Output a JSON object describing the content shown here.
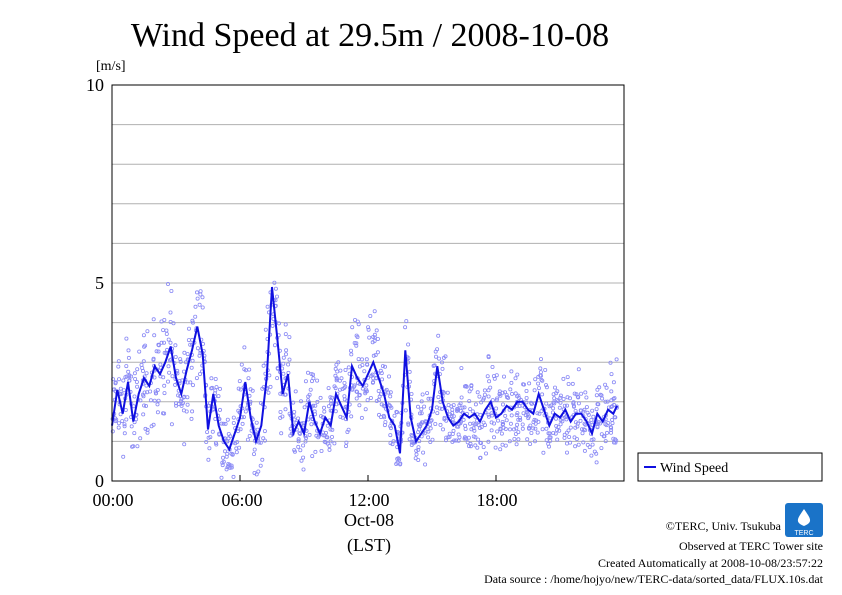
{
  "chart_data": {
    "type": "scatter",
    "title": "Wind Speed at 29.5m / 2008-10-08",
    "ylabel_unit": "[m/s]",
    "xlabel": "(LST)",
    "x_date_label": "Oct-08",
    "ylim": [
      0,
      10
    ],
    "xlim_hours": [
      0,
      23.67
    ],
    "y_ticks": [
      "0",
      "5",
      "10"
    ],
    "x_ticks": [
      "00:00",
      "06:00",
      "12:00",
      "18:00"
    ],
    "grid": "horizontal",
    "legend": {
      "label": "Wind Speed",
      "placement": "right"
    },
    "colors": {
      "line": "#1010e0",
      "points": "#8a8af5"
    },
    "series": [
      {
        "name": "Wind Speed",
        "x_hours": [
          0.0,
          0.25,
          0.5,
          0.75,
          1.0,
          1.25,
          1.5,
          1.75,
          2.0,
          2.25,
          2.5,
          2.75,
          3.0,
          3.25,
          3.5,
          3.75,
          4.0,
          4.25,
          4.5,
          4.75,
          5.0,
          5.25,
          5.5,
          5.75,
          6.0,
          6.25,
          6.5,
          6.75,
          7.0,
          7.25,
          7.5,
          7.75,
          8.0,
          8.25,
          8.5,
          8.75,
          9.0,
          9.25,
          9.5,
          9.75,
          10.0,
          10.25,
          10.5,
          10.75,
          11.0,
          11.25,
          11.5,
          11.75,
          12.0,
          12.25,
          12.5,
          12.75,
          13.0,
          13.25,
          13.5,
          13.75,
          14.0,
          14.25,
          14.5,
          14.75,
          15.0,
          15.25,
          15.5,
          15.75,
          16.0,
          16.25,
          16.5,
          16.75,
          17.0,
          17.25,
          17.5,
          17.75,
          18.0,
          18.25,
          18.5,
          18.75,
          19.0,
          19.25,
          19.5,
          19.75,
          20.0,
          20.25,
          20.5,
          20.75,
          21.0,
          21.25,
          21.5,
          21.75,
          22.0,
          22.25,
          22.5,
          22.75,
          23.0,
          23.25,
          23.5,
          23.67
        ],
        "values": [
          1.4,
          2.3,
          1.7,
          2.5,
          1.5,
          2.2,
          2.6,
          2.4,
          2.9,
          2.7,
          3.0,
          3.4,
          2.6,
          2.2,
          2.8,
          3.3,
          3.9,
          3.2,
          1.3,
          2.2,
          1.4,
          1.0,
          0.8,
          1.2,
          1.6,
          2.5,
          1.6,
          1.0,
          1.4,
          2.6,
          4.9,
          3.6,
          2.2,
          2.7,
          1.2,
          1.5,
          1.2,
          2.0,
          1.5,
          1.2,
          1.6,
          1.4,
          2.2,
          1.9,
          1.6,
          2.9,
          2.6,
          2.4,
          2.7,
          3.0,
          2.6,
          2.2,
          1.6,
          1.4,
          0.7,
          3.3,
          1.6,
          1.0,
          1.2,
          1.4,
          1.8,
          2.9,
          2.0,
          1.6,
          1.4,
          1.5,
          1.7,
          1.6,
          1.7,
          1.5,
          1.8,
          2.0,
          1.6,
          1.7,
          1.9,
          1.8,
          2.0,
          2.0,
          1.8,
          1.7,
          2.2,
          1.8,
          1.4,
          1.7,
          1.6,
          1.8,
          1.5,
          1.7,
          1.7,
          1.5,
          1.2,
          1.7,
          1.5,
          1.8,
          1.7,
          1.9
        ]
      }
    ]
  },
  "credits": {
    "copyright": "©TERC, Univ. Tsukuba",
    "observed": "Observed at TERC Tower site",
    "created": "Created Automatically at 2008-10-08/23:57:22",
    "source": "Data source : /home/hojyo/new/TERC-data/sorted_data/FLUX.10s.dat"
  },
  "logo": {
    "text": "TERC",
    "color": "#1a73c8"
  }
}
